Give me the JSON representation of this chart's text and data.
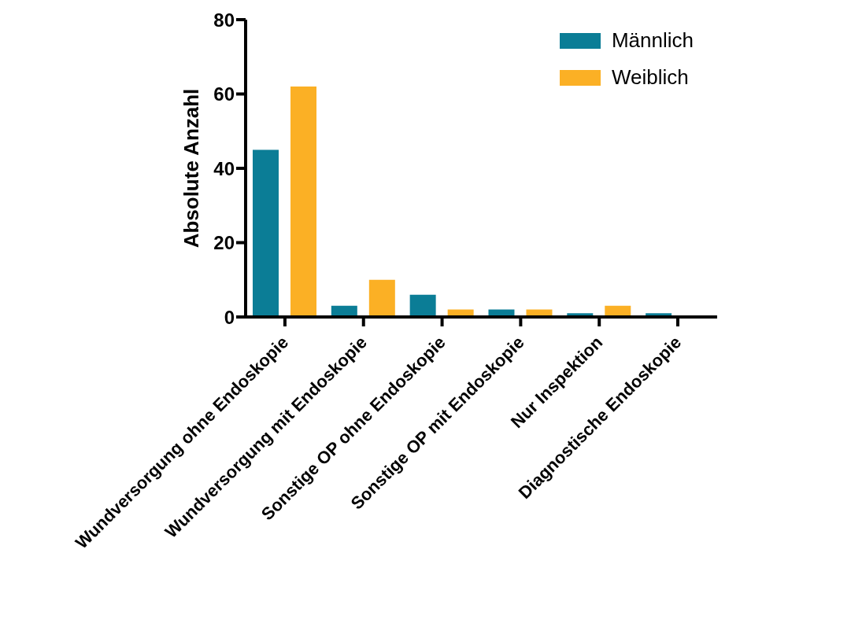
{
  "chart_data": {
    "type": "bar",
    "ylabel": "Absolute Anzahl",
    "categories": [
      "Wundversorgung ohne Endoskopie",
      "Wundversorgung mit Endoskopie",
      "Sonstige OP ohne Endoskopie",
      "Sonstige OP mit Endoskopie",
      "Nur Inspektion",
      "Diagnostische Endoskopie"
    ],
    "series": [
      {
        "name": "Männlich",
        "color": "#0b7d96",
        "values": [
          45,
          3,
          6,
          2,
          1,
          1
        ]
      },
      {
        "name": "Weiblich",
        "color": "#fbb025",
        "values": [
          62,
          10,
          2,
          2,
          3,
          0
        ]
      }
    ],
    "ylim": [
      0,
      80
    ],
    "yticks": [
      0,
      20,
      40,
      60,
      80
    ],
    "grid": false,
    "legend": "top right"
  }
}
